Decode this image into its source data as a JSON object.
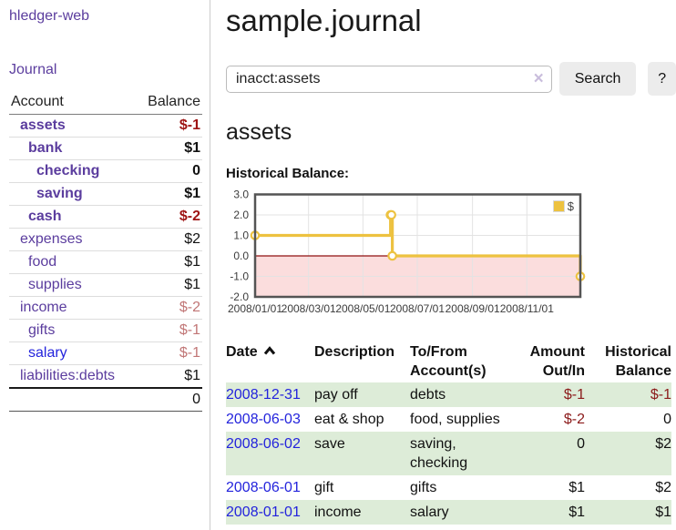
{
  "sidebar": {
    "app_title": "hledger-web",
    "nav": {
      "journal_label": "Journal"
    },
    "accounts_table": {
      "account_header": "Account",
      "balance_header": "Balance",
      "rows": [
        {
          "name": "assets",
          "balance": "$-1",
          "indent": 1,
          "emphasis": true,
          "tone": "negative-strong"
        },
        {
          "name": "bank",
          "balance": "$1",
          "indent": 2,
          "emphasis": true,
          "tone": "normal"
        },
        {
          "name": "checking",
          "balance": "0",
          "indent": 3,
          "emphasis": true,
          "tone": "normal"
        },
        {
          "name": "saving",
          "balance": "$1",
          "indent": 3,
          "emphasis": true,
          "tone": "normal"
        },
        {
          "name": "cash",
          "balance": "$-2",
          "indent": 2,
          "emphasis": true,
          "tone": "negative-strong"
        },
        {
          "name": "expenses",
          "balance": "$2",
          "indent": 1,
          "emphasis": false,
          "tone": "normal"
        },
        {
          "name": "food",
          "balance": "$1",
          "indent": 2,
          "emphasis": false,
          "tone": "normal"
        },
        {
          "name": "supplies",
          "balance": "$1",
          "indent": 2,
          "emphasis": false,
          "tone": "normal"
        },
        {
          "name": "income",
          "balance": "$-2",
          "indent": 1,
          "emphasis": false,
          "tone": "negative-muted"
        },
        {
          "name": "gifts",
          "balance": "$-1",
          "indent": 2,
          "emphasis": false,
          "tone": "negative-muted"
        },
        {
          "name": "salary",
          "balance": "$-1",
          "indent": 2,
          "emphasis": false,
          "tone": "negative-muted",
          "link_style": "unvisited"
        },
        {
          "name": "liabilities:debts",
          "balance": "$1",
          "indent": 1,
          "emphasis": false,
          "tone": "normal"
        }
      ],
      "total": "0"
    }
  },
  "main": {
    "title": "sample.journal",
    "search": {
      "value": "inacct:assets",
      "clear_icon": "×",
      "search_button": "Search",
      "help_button": "?"
    },
    "account_heading": "assets",
    "chart_heading": "Historical Balance:"
  },
  "chart_data": {
    "type": "line",
    "title": "Historical Balance:",
    "steps": true,
    "series": [
      {
        "name": "$",
        "color": "#edc240",
        "points": [
          {
            "x": "2008-01-01",
            "y": 1
          },
          {
            "x": "2008-06-01",
            "y": 2
          },
          {
            "x": "2008-06-02",
            "y": 2
          },
          {
            "x": "2008-06-03",
            "y": 0
          },
          {
            "x": "2008-12-31",
            "y": -1
          }
        ]
      }
    ],
    "xlim": [
      "2008-01-01",
      "2008-12-31"
    ],
    "ylim": [
      -2,
      3
    ],
    "x_tick_dates": [
      "2008-01-01",
      "2008-03-01",
      "2008-05-01",
      "2008-07-01",
      "2008-09-01",
      "2008-11-01"
    ],
    "x_tick_labels": [
      "2008/01/01",
      "2008/03/01",
      "2008/05/01",
      "2008/07/01",
      "2008/09/01",
      "2008/11/01"
    ],
    "y_tick_values": [
      3,
      2,
      1,
      0,
      -1,
      -2
    ],
    "y_tick_labels": [
      "3.0",
      "2.0",
      "1.0",
      "0.0",
      "-1.0",
      "-2.0"
    ],
    "legend": {
      "label": "$",
      "position": "top-right"
    },
    "grid": true,
    "colors": {
      "line": "#edc240",
      "negative_region": "#fbdddd",
      "zero_line": "#8f1010",
      "grid_line": "#e3e3e3",
      "border": "#545454"
    }
  },
  "transactions_table": {
    "headers": {
      "date": "Date",
      "description": "Description",
      "account": "To/From Account(s)",
      "amount": "Amount Out/In",
      "balance": "Historical Balance"
    },
    "rows": [
      {
        "date": "2008-12-31",
        "description": "pay off",
        "accounts": "debts",
        "amount": "$-1",
        "amount_tone": "negative",
        "balance": "$-1",
        "balance_tone": "negative",
        "shaded": true
      },
      {
        "date": "2008-06-03",
        "description": "eat & shop",
        "accounts": "food, supplies",
        "amount": "$-2",
        "amount_tone": "negative",
        "balance": "0",
        "balance_tone": "normal",
        "shaded": false
      },
      {
        "date": "2008-06-02",
        "description": "save",
        "accounts": "saving, checking",
        "amount": "0",
        "amount_tone": "normal",
        "balance": "$2",
        "balance_tone": "normal",
        "shaded": true
      },
      {
        "date": "2008-06-01",
        "description": "gift",
        "accounts": "gifts",
        "amount": "$1",
        "amount_tone": "normal",
        "balance": "$2",
        "balance_tone": "normal",
        "shaded": false
      },
      {
        "date": "2008-01-01",
        "description": "income",
        "accounts": "salary",
        "amount": "$1",
        "amount_tone": "normal",
        "balance": "$1",
        "balance_tone": "normal",
        "shaded": true
      }
    ]
  }
}
